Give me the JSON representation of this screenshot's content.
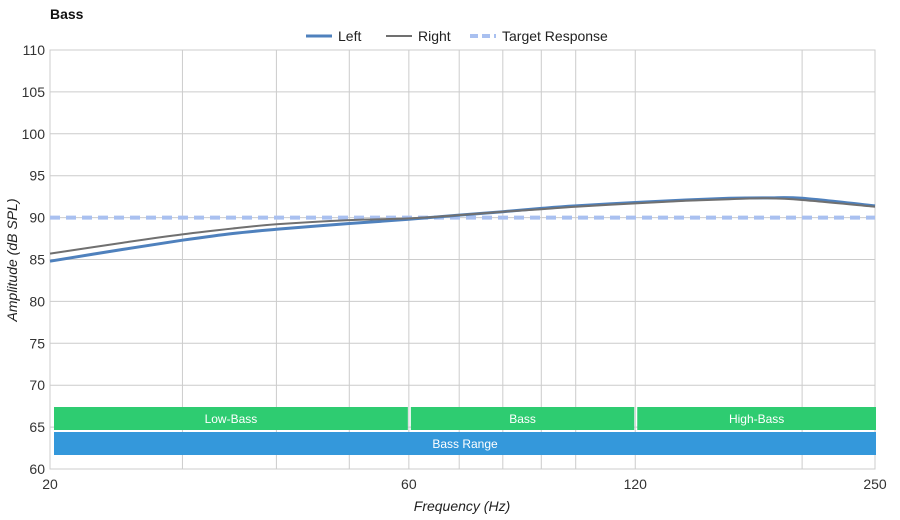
{
  "chart_data": {
    "type": "line",
    "title": "Bass",
    "xlabel": "Frequency (Hz)",
    "ylabel": "Amplitude (dB SPL)",
    "x_scale": "log",
    "xlim": [
      20,
      250
    ],
    "ylim": [
      60,
      110
    ],
    "x_tick_labels": [
      "20",
      "60",
      "120",
      "250"
    ],
    "x_ticks": [
      20,
      60,
      120,
      250
    ],
    "x_minor_grid": [
      30,
      40,
      50,
      70,
      80,
      90,
      100,
      200
    ],
    "y_ticks": [
      60,
      65,
      70,
      75,
      80,
      85,
      90,
      95,
      100,
      105,
      110
    ],
    "grid": true,
    "legend": "top-center",
    "series": [
      {
        "name": "Left",
        "color": "#4f81bd",
        "style": "solid-thick",
        "x": [
          20,
          25,
          30,
          35,
          40,
          50,
          60,
          70,
          80,
          90,
          100,
          120,
          140,
          160,
          180,
          200,
          250
        ],
        "y": [
          84.8,
          86.2,
          87.3,
          88.1,
          88.6,
          89.3,
          89.8,
          90.3,
          90.7,
          91.1,
          91.4,
          91.8,
          92.1,
          92.3,
          92.35,
          92.3,
          91.4
        ]
      },
      {
        "name": "Right",
        "color": "#707070",
        "style": "solid-thin",
        "x": [
          20,
          25,
          30,
          35,
          40,
          50,
          60,
          70,
          80,
          90,
          100,
          120,
          140,
          160,
          180,
          200,
          250
        ],
        "y": [
          85.7,
          87.0,
          88.0,
          88.7,
          89.2,
          89.7,
          89.9,
          90.3,
          90.7,
          91.0,
          91.3,
          91.7,
          92.0,
          92.2,
          92.3,
          92.1,
          91.3
        ]
      },
      {
        "name": "Target Response",
        "color": "#a9c0f0",
        "style": "dashed",
        "x": [
          20,
          250
        ],
        "y": [
          90,
          90
        ]
      }
    ],
    "bands": [
      {
        "label": "Low-Bass",
        "x": [
          20,
          60
        ],
        "row": 0,
        "color": "#2ecc71"
      },
      {
        "label": "Bass",
        "x": [
          60,
          120
        ],
        "row": 0,
        "color": "#2ecc71"
      },
      {
        "label": "High-Bass",
        "x": [
          120,
          250
        ],
        "row": 0,
        "color": "#2ecc71"
      },
      {
        "label": "Bass Range",
        "x": [
          20,
          250
        ],
        "row": 1,
        "color": "#3498db"
      }
    ]
  }
}
